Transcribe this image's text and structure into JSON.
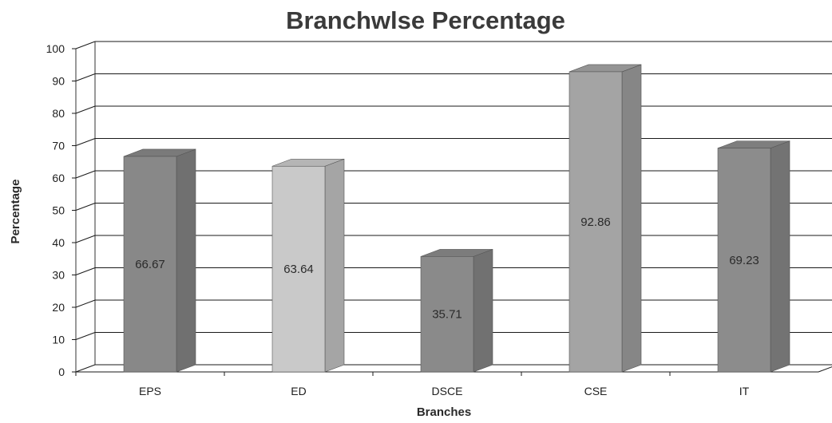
{
  "chart_data": {
    "type": "bar",
    "title": "Branchwlse Percentage",
    "xlabel": "Branches",
    "ylabel": "Percentage",
    "categories": [
      "EPS",
      "ED",
      "DSCE",
      "CSE",
      "IT"
    ],
    "values": [
      66.67,
      63.64,
      35.71,
      92.86,
      69.23
    ],
    "value_labels": [
      "66.67",
      "63.64",
      "35.71",
      "92.86",
      "69.23"
    ],
    "ylim": [
      0,
      100
    ],
    "yticks": [
      0,
      10,
      20,
      30,
      40,
      50,
      60,
      70,
      80,
      90,
      100
    ],
    "grid": true,
    "legend": "none",
    "style": "3d",
    "bar_colors": [
      "#888888",
      "#c9c9c9",
      "#8a8a8a",
      "#a4a4a4",
      "#8c8c8c"
    ]
  }
}
